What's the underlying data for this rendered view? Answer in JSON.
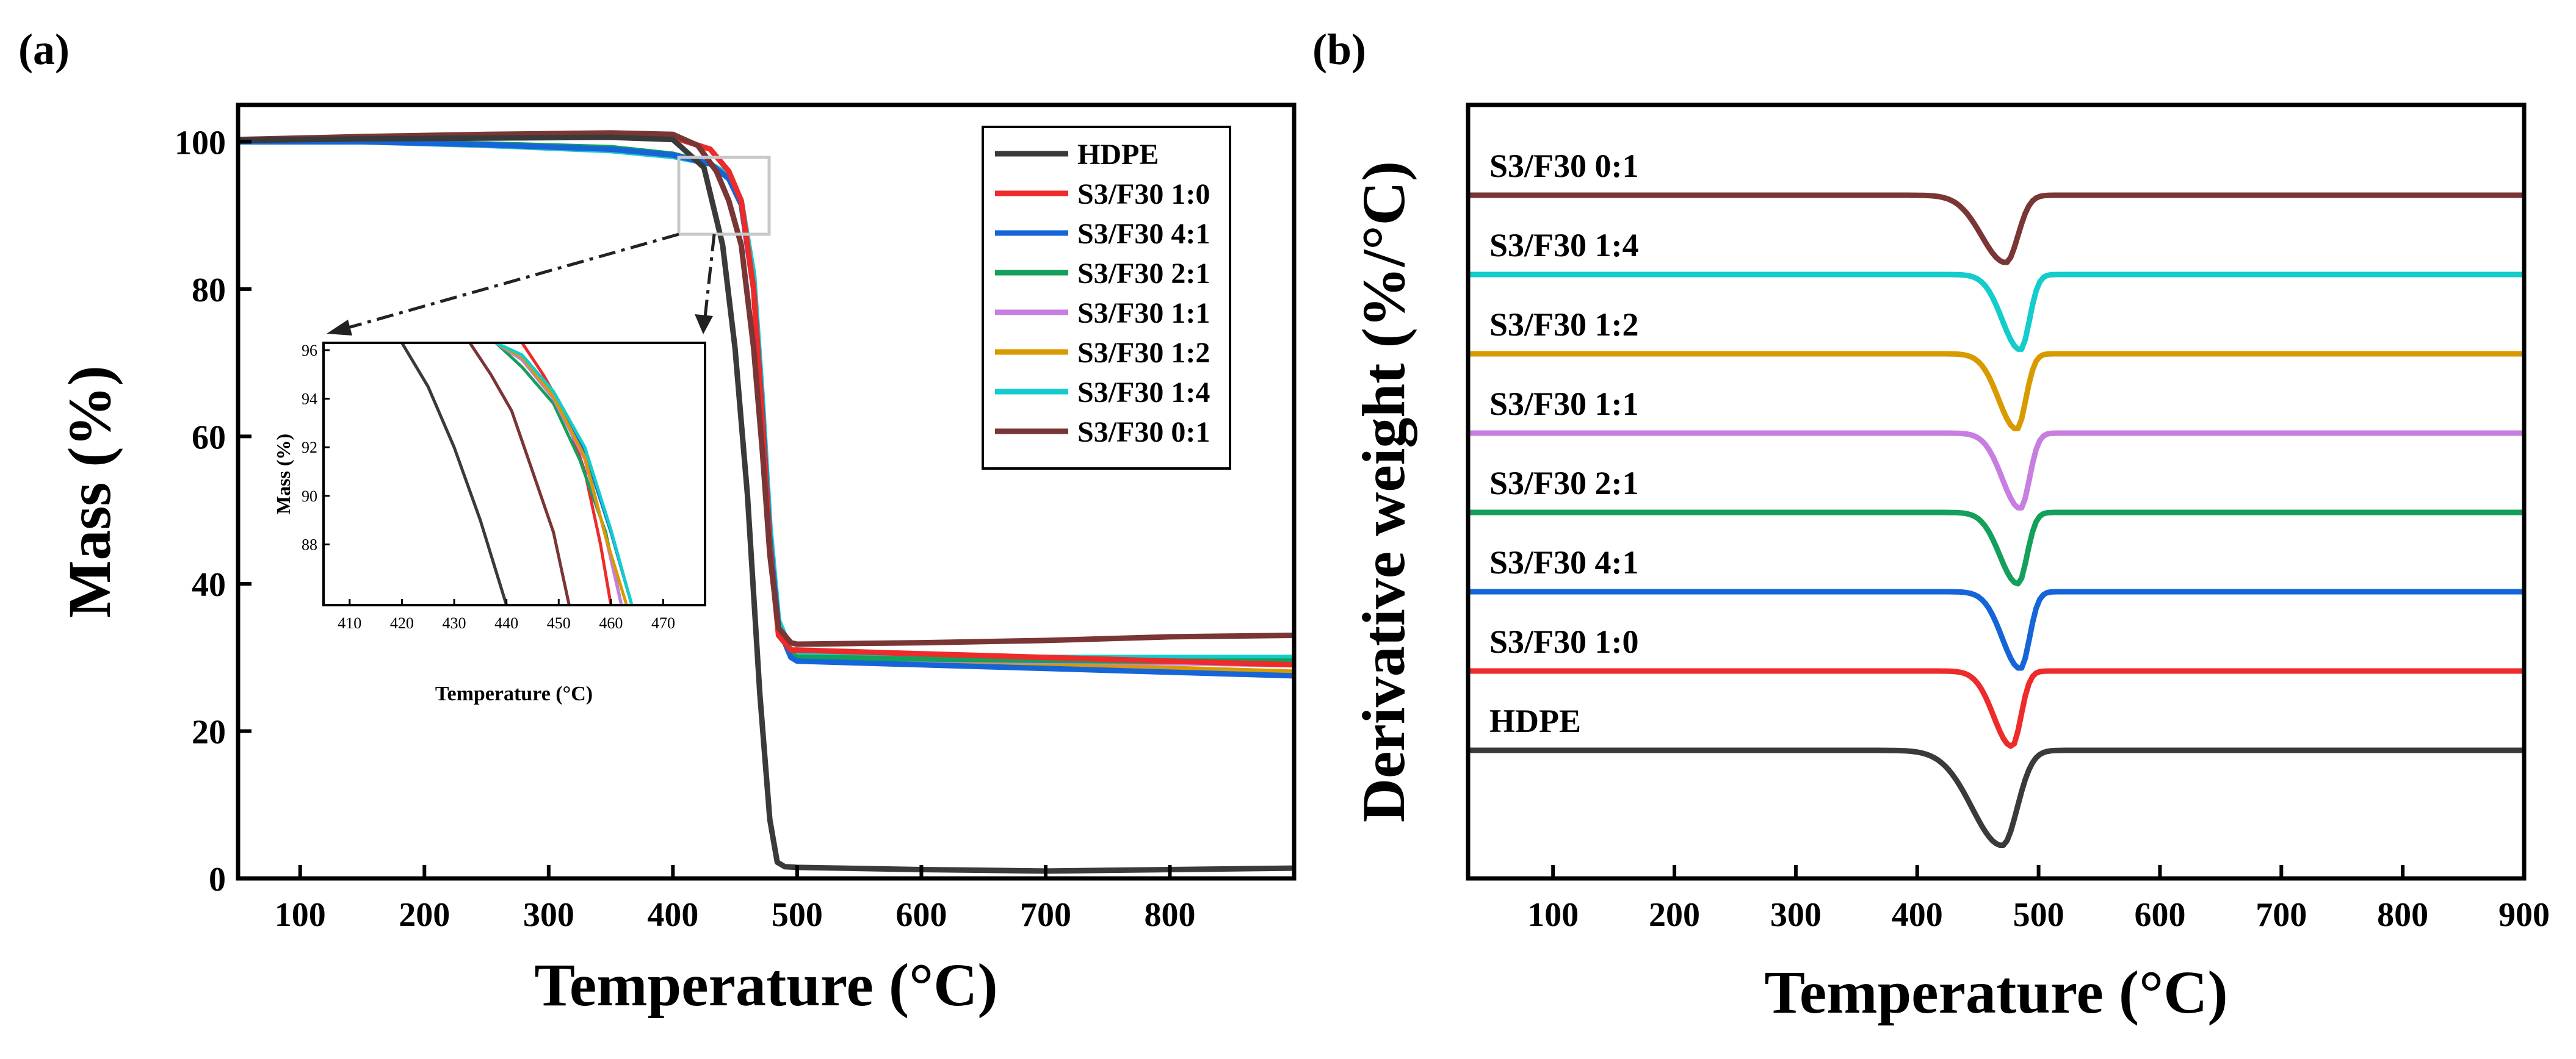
{
  "figure": {
    "panel_a_label": "(a)",
    "panel_b_label": "(b)"
  },
  "colors": {
    "HDPE": "#3a3a3a",
    "S3/F30 1:0": "#ee2a2a",
    "S3/F30 4:1": "#1565d8",
    "S3/F30 2:1": "#14a05a",
    "S3/F30 1:1": "#c77ee0",
    "S3/F30 1:2": "#d99a00",
    "S3/F30 1:4": "#14cccc",
    "S3/F30 0:1": "#7a3535"
  },
  "chart_data": [
    {
      "id": "tga",
      "type": "line",
      "title": "",
      "xlabel": "Temperature (°C)",
      "ylabel": "Mass (%)",
      "xlim": [
        50,
        900
      ],
      "ylim": [
        0,
        105
      ],
      "xticks": [
        100,
        200,
        300,
        400,
        500,
        600,
        700,
        800
      ],
      "yticks": [
        0,
        20,
        40,
        60,
        80,
        100
      ],
      "legend": [
        "HDPE",
        "S3/F30 1:0",
        "S3/F30 4:1",
        "S3/F30 2:1",
        "S3/F30 1:1",
        "S3/F30 1:2",
        "S3/F30 1:4",
        "S3/F30 0:1"
      ],
      "legend_position": "top-right",
      "series": [
        {
          "name": "HDPE",
          "x": [
            50,
            150,
            250,
            350,
            400,
            425,
            440,
            450,
            460,
            470,
            478,
            484,
            490,
            500,
            600,
            700,
            800,
            900
          ],
          "y": [
            100.2,
            100.4,
            100.5,
            100.6,
            100.3,
            96.5,
            86,
            72,
            52,
            25,
            8,
            2.2,
            1.6,
            1.5,
            1.2,
            1.0,
            1.2,
            1.4
          ]
        },
        {
          "name": "S3/F30 1:0",
          "x": [
            50,
            150,
            250,
            350,
            400,
            430,
            445,
            455,
            465,
            472,
            478,
            485,
            495,
            500,
            600,
            700,
            800,
            900
          ],
          "y": [
            100.2,
            100.5,
            100.8,
            100.9,
            100.6,
            99,
            96,
            92,
            80,
            62,
            45,
            33,
            31,
            31,
            30.5,
            30,
            29.5,
            29
          ]
        },
        {
          "name": "S3/F30 4:1",
          "x": [
            50,
            150,
            250,
            350,
            400,
            430,
            445,
            455,
            465,
            472,
            478,
            485,
            495,
            500,
            600,
            700,
            800,
            900
          ],
          "y": [
            100,
            100,
            99.6,
            99,
            98.2,
            97,
            95,
            91.5,
            80,
            63,
            46,
            34,
            30,
            29.5,
            29,
            28.5,
            28,
            27.5
          ]
        },
        {
          "name": "S3/F30 2:1",
          "x": [
            50,
            150,
            250,
            350,
            400,
            430,
            445,
            455,
            465,
            472,
            478,
            485,
            495,
            500,
            600,
            700,
            800,
            900
          ],
          "y": [
            100,
            100,
            99.7,
            99.2,
            98.3,
            97,
            95,
            91.5,
            80,
            63,
            46,
            34,
            30.5,
            30,
            29.8,
            29.6,
            29.5,
            29.5
          ]
        },
        {
          "name": "S3/F30 1:1",
          "x": [
            50,
            150,
            250,
            350,
            400,
            430,
            445,
            455,
            465,
            472,
            478,
            485,
            495,
            500,
            600,
            700,
            800,
            900
          ],
          "y": [
            100,
            100,
            99.6,
            99,
            98.2,
            97,
            95,
            91.5,
            80,
            63,
            46,
            34,
            30.5,
            30,
            29.7,
            29.5,
            29.3,
            29
          ]
        },
        {
          "name": "S3/F30 1:2",
          "x": [
            50,
            150,
            250,
            350,
            400,
            430,
            445,
            455,
            465,
            472,
            478,
            485,
            495,
            500,
            600,
            700,
            800,
            900
          ],
          "y": [
            100,
            100,
            99.6,
            99,
            98.2,
            97,
            95,
            91.5,
            80,
            63,
            46,
            34,
            30.5,
            30,
            29.5,
            29,
            28.5,
            28
          ]
        },
        {
          "name": "S3/F30 1:4",
          "x": [
            50,
            150,
            250,
            350,
            400,
            430,
            445,
            455,
            465,
            472,
            478,
            485,
            495,
            500,
            600,
            700,
            800,
            900
          ],
          "y": [
            100,
            100,
            99.5,
            98.8,
            98,
            97,
            95.5,
            92,
            82,
            65,
            48,
            35,
            31,
            30.5,
            30.2,
            30,
            30,
            30
          ]
        },
        {
          "name": "S3/F30 0:1",
          "x": [
            50,
            150,
            250,
            350,
            400,
            420,
            435,
            445,
            455,
            465,
            472,
            478,
            485,
            495,
            500,
            600,
            700,
            800,
            900
          ],
          "y": [
            100.3,
            100.7,
            101,
            101.2,
            101,
            99.5,
            96,
            92,
            86,
            72,
            58,
            44,
            34,
            32,
            31.8,
            32,
            32.3,
            32.8,
            33
          ]
        }
      ]
    },
    {
      "id": "tga-inset",
      "type": "line",
      "title": "",
      "xlabel": "Temperature (°C)",
      "ylabel": "Mass (%)",
      "xlim": [
        405,
        478
      ],
      "ylim": [
        85.5,
        96.3
      ],
      "xticks": [
        410,
        420,
        430,
        440,
        450,
        460,
        470
      ],
      "yticks": [
        88,
        90,
        92,
        94,
        96
      ],
      "series": [
        {
          "name": "HDPE",
          "x": [
            420,
            425,
            430,
            435,
            440
          ],
          "y": [
            96.3,
            94.5,
            92,
            89,
            85.5
          ]
        },
        {
          "name": "S3/F30 0:1",
          "x": [
            433,
            437,
            441,
            445,
            449,
            452
          ],
          "y": [
            96.3,
            95,
            93.5,
            91,
            88.5,
            85.5
          ]
        },
        {
          "name": "S3/F30 1:0",
          "x": [
            443,
            447,
            451,
            455,
            458,
            460
          ],
          "y": [
            96.3,
            95,
            93.5,
            91,
            88,
            85.5
          ]
        },
        {
          "name": "S3/F30 4:1",
          "x": [
            438,
            443,
            449,
            455,
            460,
            464
          ],
          "y": [
            96.3,
            95.7,
            94.2,
            91.8,
            88.5,
            85.5
          ]
        },
        {
          "name": "S3/F30 2:1",
          "x": [
            438,
            443,
            449,
            454,
            459,
            462
          ],
          "y": [
            96.3,
            95.3,
            93.8,
            91.5,
            88.5,
            85.5
          ]
        },
        {
          "name": "S3/F30 1:1",
          "x": [
            438,
            443,
            449,
            455,
            459,
            462
          ],
          "y": [
            96.3,
            95.6,
            94,
            91.5,
            88.3,
            85.5
          ]
        },
        {
          "name": "S3/F30 1:2",
          "x": [
            438,
            443,
            449,
            455,
            459,
            463
          ],
          "y": [
            96.3,
            95.7,
            94.1,
            91.6,
            88.3,
            85.5
          ]
        },
        {
          "name": "S3/F30 1:4",
          "x": [
            438,
            443,
            449,
            455,
            460,
            464
          ],
          "y": [
            96.3,
            95.8,
            94.3,
            92,
            88.6,
            85.5
          ]
        }
      ]
    },
    {
      "id": "dtg",
      "type": "line",
      "title": "",
      "xlabel": "Temperature (°C)",
      "ylabel": "Derivative weight (%/°C)",
      "xlim": [
        30,
        900
      ],
      "xticks": [
        100,
        200,
        300,
        400,
        500,
        600,
        700,
        800,
        900
      ],
      "yticks": [],
      "series": [
        {
          "name": "HDPE",
          "baseline": 0,
          "peak_temp": 470,
          "peak_depth": 1.2,
          "width": 25
        },
        {
          "name": "S3/F30 1:0",
          "baseline": 1,
          "peak_temp": 478,
          "peak_depth": 0.95,
          "width": 15
        },
        {
          "name": "S3/F30 4:1",
          "baseline": 2,
          "peak_temp": 485,
          "peak_depth": 0.97,
          "width": 15
        },
        {
          "name": "S3/F30 2:1",
          "baseline": 3,
          "peak_temp": 483,
          "peak_depth": 0.9,
          "width": 15
        },
        {
          "name": "S3/F30 1:1",
          "baseline": 4,
          "peak_temp": 485,
          "peak_depth": 0.95,
          "width": 15
        },
        {
          "name": "S3/F30 1:2",
          "baseline": 5,
          "peak_temp": 482,
          "peak_depth": 0.95,
          "width": 15
        },
        {
          "name": "S3/F30 1:4",
          "baseline": 6,
          "peak_temp": 485,
          "peak_depth": 0.95,
          "width": 15
        },
        {
          "name": "S3/F30 0:1",
          "baseline": 7,
          "peak_temp": 473,
          "peak_depth": 0.85,
          "width": 20
        }
      ]
    }
  ]
}
